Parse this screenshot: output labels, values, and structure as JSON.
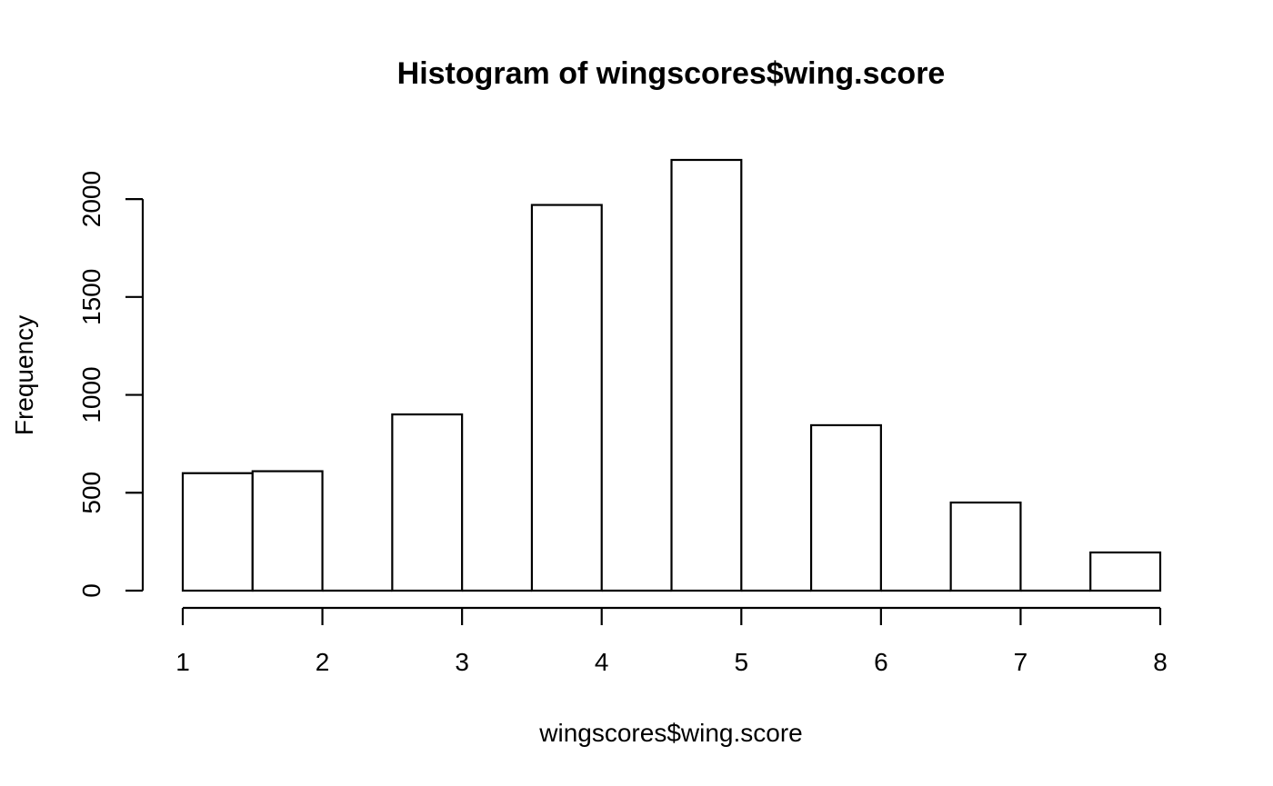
{
  "chart_data": {
    "type": "bar",
    "title": "Histogram of wingscores$wing.score",
    "xlabel": "wingscores$wing.score",
    "ylabel": "Frequency",
    "bins": [
      {
        "start": 1.0,
        "end": 1.5,
        "count": 600
      },
      {
        "start": 1.5,
        "end": 2.0,
        "count": 610
      },
      {
        "start": 2.0,
        "end": 2.5,
        "count": 0
      },
      {
        "start": 2.5,
        "end": 3.0,
        "count": 900
      },
      {
        "start": 3.0,
        "end": 3.5,
        "count": 0
      },
      {
        "start": 3.5,
        "end": 4.0,
        "count": 1970
      },
      {
        "start": 4.0,
        "end": 4.5,
        "count": 0
      },
      {
        "start": 4.5,
        "end": 5.0,
        "count": 2200
      },
      {
        "start": 5.0,
        "end": 5.5,
        "count": 0
      },
      {
        "start": 5.5,
        "end": 6.0,
        "count": 845
      },
      {
        "start": 6.0,
        "end": 6.5,
        "count": 0
      },
      {
        "start": 6.5,
        "end": 7.0,
        "count": 450
      },
      {
        "start": 7.0,
        "end": 7.5,
        "count": 0
      },
      {
        "start": 7.5,
        "end": 8.0,
        "count": 195
      }
    ],
    "xlim": [
      1,
      8
    ],
    "ylim": [
      0,
      2200
    ],
    "x_ticks": [
      1,
      2,
      3,
      4,
      5,
      6,
      7,
      8
    ],
    "y_ticks": [
      0,
      500,
      1000,
      1500,
      2000
    ],
    "grid": false,
    "legend": "none"
  }
}
